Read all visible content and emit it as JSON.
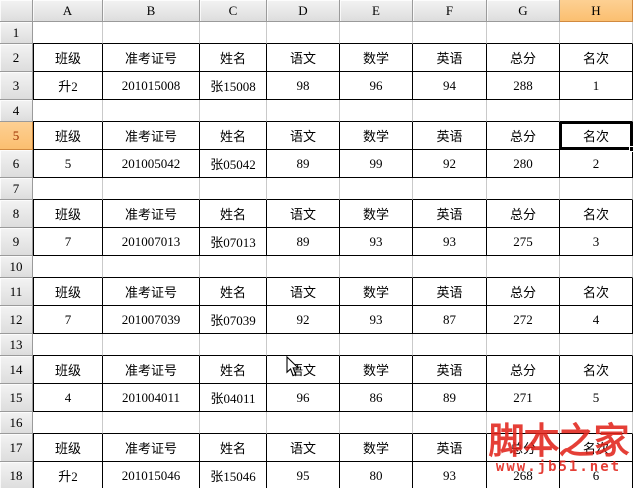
{
  "sheet": {
    "column_headers": [
      "A",
      "B",
      "C",
      "D",
      "E",
      "F",
      "G",
      "H"
    ],
    "selected_column": "H",
    "selected_row": "5",
    "active_cell": "H5",
    "rows": [
      {
        "num": "1",
        "type": "empty",
        "cells": [
          "",
          "",
          "",
          "",
          "",
          "",
          "",
          ""
        ]
      },
      {
        "num": "2",
        "type": "label",
        "cells": [
          "班级",
          "准考证号",
          "姓名",
          "语文",
          "数学",
          "英语",
          "总分",
          "名次"
        ]
      },
      {
        "num": "3",
        "type": "data",
        "cells": [
          "升2",
          "201015008",
          "张15008",
          "98",
          "96",
          "94",
          "288",
          "1"
        ]
      },
      {
        "num": "4",
        "type": "empty",
        "cells": [
          "",
          "",
          "",
          "",
          "",
          "",
          "",
          ""
        ]
      },
      {
        "num": "5",
        "type": "label",
        "cells": [
          "班级",
          "准考证号",
          "姓名",
          "语文",
          "数学",
          "英语",
          "总分",
          "名次"
        ]
      },
      {
        "num": "6",
        "type": "data",
        "cells": [
          "5",
          "201005042",
          "张05042",
          "89",
          "99",
          "92",
          "280",
          "2"
        ]
      },
      {
        "num": "7",
        "type": "empty",
        "cells": [
          "",
          "",
          "",
          "",
          "",
          "",
          "",
          ""
        ]
      },
      {
        "num": "8",
        "type": "label",
        "cells": [
          "班级",
          "准考证号",
          "姓名",
          "语文",
          "数学",
          "英语",
          "总分",
          "名次"
        ]
      },
      {
        "num": "9",
        "type": "data",
        "cells": [
          "7",
          "201007013",
          "张07013",
          "89",
          "93",
          "93",
          "275",
          "3"
        ]
      },
      {
        "num": "10",
        "type": "empty",
        "cells": [
          "",
          "",
          "",
          "",
          "",
          "",
          "",
          ""
        ]
      },
      {
        "num": "11",
        "type": "label",
        "cells": [
          "班级",
          "准考证号",
          "姓名",
          "语文",
          "数学",
          "英语",
          "总分",
          "名次"
        ]
      },
      {
        "num": "12",
        "type": "data",
        "cells": [
          "7",
          "201007039",
          "张07039",
          "92",
          "93",
          "87",
          "272",
          "4"
        ]
      },
      {
        "num": "13",
        "type": "empty",
        "cells": [
          "",
          "",
          "",
          "",
          "",
          "",
          "",
          ""
        ]
      },
      {
        "num": "14",
        "type": "label",
        "cells": [
          "班级",
          "准考证号",
          "姓名",
          "语文",
          "数学",
          "英语",
          "总分",
          "名次"
        ]
      },
      {
        "num": "15",
        "type": "data",
        "cells": [
          "4",
          "201004011",
          "张04011",
          "96",
          "86",
          "89",
          "271",
          "5"
        ]
      },
      {
        "num": "16",
        "type": "empty",
        "cells": [
          "",
          "",
          "",
          "",
          "",
          "",
          "",
          ""
        ]
      },
      {
        "num": "17",
        "type": "label",
        "cells": [
          "班级",
          "准考证号",
          "姓名",
          "语文",
          "数学",
          "英语",
          "总分",
          "名次"
        ]
      },
      {
        "num": "18",
        "type": "data",
        "cells": [
          "升2",
          "201015046",
          "张15046",
          "95",
          "80",
          "93",
          "268",
          "6"
        ]
      }
    ]
  },
  "watermark": {
    "title": "脚本之家",
    "url": "www.jb51.net"
  },
  "icons": {
    "mouse_cursor": "arrow-pointer-icon"
  },
  "colors": {
    "header_bg_top": "#f3f3f3",
    "header_bg_bottom": "#dddddd",
    "header_border": "#9a9a9a",
    "selection_fill": "#fbbf70",
    "selection_border": "#d18a3f",
    "selection_row_text": "#9c3000",
    "grid_line": "#c9c9c9",
    "table_border": "#000000",
    "cell_bg": "#ffffff",
    "watermark_red": "#e2251c"
  }
}
